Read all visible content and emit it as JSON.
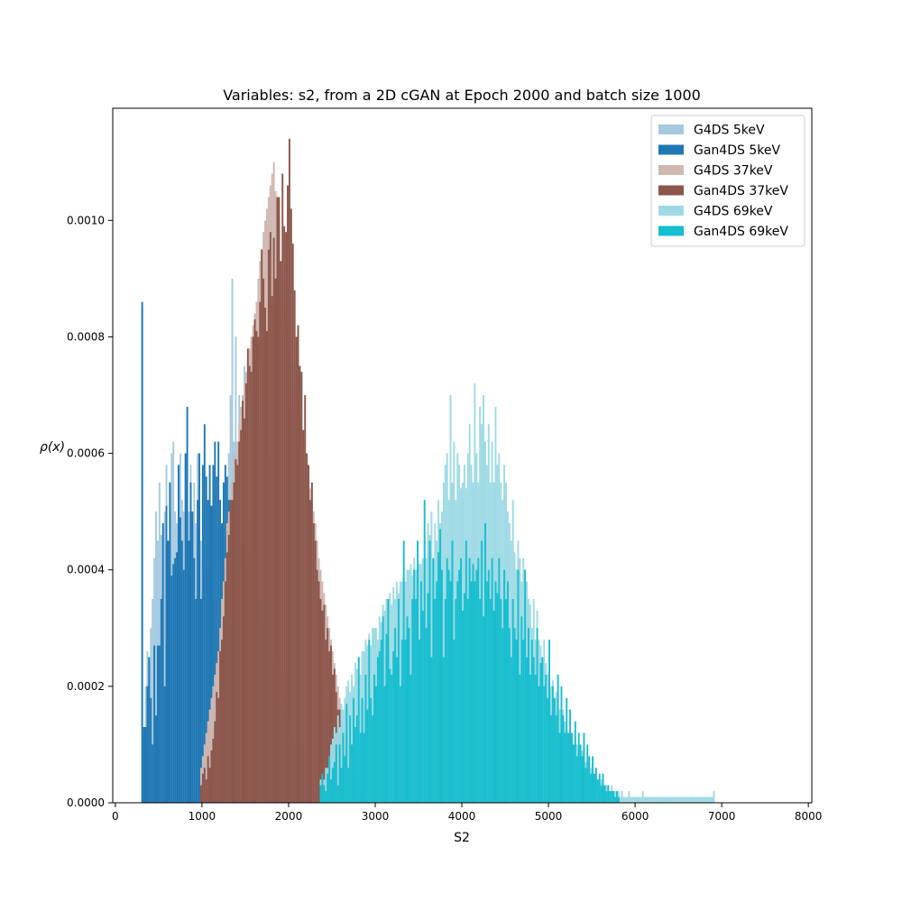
{
  "chart_data": {
    "type": "bar",
    "title": "Variables: s2, from a 2D cGAN at Epoch 2000 and batch size 1000",
    "xlabel": "S2",
    "ylabel": "ρ(x)",
    "xlim": [
      -30,
      8040
    ],
    "ylim": [
      0,
      0.0011925
    ],
    "x_ticks": [
      0,
      1000,
      2000,
      3000,
      4000,
      5000,
      6000,
      7000,
      8000
    ],
    "x_tick_labels": [
      "0",
      "1000",
      "2000",
      "3000",
      "4000",
      "5000",
      "6000",
      "7000",
      "8000"
    ],
    "y_ticks": [
      0,
      0.0002,
      0.0004,
      0.0006,
      0.0008,
      0.001
    ],
    "y_tick_labels": [
      "0.0000",
      "0.0002",
      "0.0004",
      "0.0006",
      "0.0008",
      "0.0010"
    ],
    "grid": false,
    "legend_position": "top-right",
    "series": [
      {
        "name": "G4DS 5keV",
        "color": "#a6cae0",
        "bin_start": 300,
        "bin_width": 20,
        "values": [
          0.00085,
          0.00012,
          0.0002,
          0.00026,
          0.00024,
          0.0003,
          0.00035,
          0.00042,
          0.0005,
          0.00045,
          0.00055,
          0.00046,
          0.0004,
          0.0005,
          0.00058,
          0.00045,
          0.0005,
          0.0006,
          0.00062,
          0.0005,
          0.00048,
          0.00056,
          0.0006,
          0.00052,
          0.0005,
          0.0006,
          0.00045,
          0.0005,
          0.00058,
          0.0005,
          0.00055,
          0.00048,
          0.0006,
          0.00055,
          0.00045,
          0.0005,
          0.00042,
          0.0004,
          0.00044,
          0.0004,
          0.00035,
          0.0003,
          0.00035,
          0.0003,
          0.00025,
          0.00022,
          0.0002,
          0.00015,
          0.0004,
          0.00045,
          0.0006,
          0.0007,
          0.0009,
          0.00062,
          0.0008,
          0.00058,
          0.0007,
          0.00065,
          0.0007,
          0.00075,
          0.00068,
          0.0007,
          0.00072,
          0.0008,
          0.0007,
          0.0006,
          0.00065,
          0.0006,
          0.0009,
          0.00085,
          0.00075,
          0.00065,
          0.0007,
          0.0006,
          0.00105,
          0.0008,
          0.0007,
          0.0006,
          0.0008,
          0.001,
          0.0008,
          0.0006,
          0.0009,
          0.00085,
          0.0007,
          0.0006,
          0.0008,
          0.00068,
          0.0007,
          0.00075,
          0.00055,
          0.0006,
          0.00065,
          0.00055,
          0.0005,
          0.00052,
          0.00048,
          0.00035,
          0.00045,
          0.0004,
          0.0003,
          0.0003,
          0.00022,
          0.00025,
          0.0002,
          0.00015,
          0.00018,
          0.0001,
          0.00012,
          8e-05
        ]
      },
      {
        "name": "Gan4DS 5keV",
        "color": "#1f77b4",
        "bin_start": 300,
        "bin_width": 20,
        "values": [
          0.00086,
          0.00013,
          0.00013,
          0.0002,
          0.00025,
          0.00018,
          0.0001,
          0.00027,
          0.00015,
          0.00027,
          0.00027,
          0.00035,
          0.00048,
          0.0002,
          0.00051,
          0.00045,
          0.00055,
          0.00039,
          0.00041,
          0.00042,
          0.00043,
          0.00058,
          0.00049,
          0.00045,
          0.0004,
          0.0006,
          0.00068,
          0.00045,
          0.00055,
          0.0005,
          0.00042,
          0.00035,
          0.00052,
          0.0006,
          0.00035,
          0.00058,
          0.00065,
          0.00056,
          0.00052,
          0.00058,
          0.00051,
          0.00058,
          0.00062,
          0.00056,
          0.00062,
          0.00052,
          0.00048,
          0.00055,
          0.00058,
          0.00056,
          0.00052,
          0.00045,
          0.0005,
          0.00055,
          0.00059,
          0.00048,
          0.00052,
          0.00045,
          0.0004,
          0.00045,
          0.0004,
          0.00048,
          0.00043,
          0.00038,
          0.00041,
          0.00035,
          0.00045,
          0.00039,
          0.00035,
          0.00032,
          0.00031,
          0.00038,
          0.0003,
          0.00035,
          0.00032,
          0.00028,
          0.00025,
          0.00022,
          0.00026,
          0.0002,
          0.00018,
          0.00022,
          0.00016,
          0.00015,
          0.00014,
          0.00012,
          0.00012,
          0.0001,
          0.00011,
          0.0001,
          9e-05,
          9e-05,
          0.0001,
          8e-05
        ]
      },
      {
        "name": "G4DS 37keV",
        "color": "#d0b8b0",
        "bin_start": 980,
        "bin_width": 20,
        "values": [
          6e-05,
          8e-05,
          0.0001,
          0.00012,
          0.00014,
          0.00016,
          0.00018,
          0.0002,
          0.00022,
          0.00024,
          0.00026,
          0.0003,
          0.00035,
          0.00038,
          0.00042,
          0.00048,
          0.0005,
          0.0005,
          0.00055,
          0.0006,
          0.00058,
          0.00062,
          0.00065,
          0.00068,
          0.0007,
          0.00072,
          0.00074,
          0.00076,
          0.00078,
          0.0008,
          0.00082,
          0.00084,
          0.00086,
          0.0009,
          0.00093,
          0.00095,
          0.00098,
          0.001,
          0.00102,
          0.00104,
          0.00106,
          0.00108,
          0.0011,
          0.00105,
          0.001,
          0.00095,
          0.0009,
          0.00088,
          0.00086,
          0.00084,
          0.00082,
          0.0008,
          0.00078,
          0.00075,
          0.00072,
          0.0007,
          0.00068,
          0.00066,
          0.00064,
          0.00062,
          0.0006,
          0.00058,
          0.00056,
          0.00054,
          0.00052,
          0.0005,
          0.00048,
          0.00045,
          0.00042,
          0.0004,
          0.00038,
          0.00036,
          0.00034,
          0.00032,
          0.0003,
          0.00028,
          0.00026,
          0.00024,
          0.00022,
          0.0002,
          0.00018,
          0.00016,
          0.00015,
          0.00014,
          0.00012,
          0.00012,
          0.0001,
          0.0001,
          9e-05,
          8e-05,
          8e-05,
          7e-05,
          6e-05,
          5e-05
        ]
      },
      {
        "name": "Gan4DS 37keV",
        "color": "#8c564b",
        "bin_start": 980,
        "bin_width": 20,
        "values": [
          3e-05,
          5e-05,
          6e-05,
          4e-05,
          8e-05,
          6e-05,
          9e-05,
          0.00011,
          0.00014,
          0.00019,
          0.00018,
          0.00026,
          0.00028,
          0.00032,
          0.00038,
          0.00043,
          0.00046,
          0.00052,
          0.00052,
          0.00055,
          0.00059,
          0.00058,
          0.00062,
          0.00064,
          0.00069,
          0.00066,
          0.00072,
          0.00078,
          0.00075,
          0.00074,
          0.0008,
          0.00083,
          0.00081,
          0.0008,
          0.00086,
          0.00095,
          0.0009,
          0.00085,
          0.00081,
          0.00095,
          0.00098,
          0.00087,
          0.00097,
          0.0009,
          0.00104,
          0.00104,
          0.00093,
          0.00108,
          0.00099,
          0.00098,
          0.00106,
          0.00114,
          0.00102,
          0.00096,
          0.00088,
          0.0008,
          0.00082,
          0.00075,
          0.00074,
          0.00064,
          0.0007,
          0.0006,
          0.00058,
          0.00052,
          0.00055,
          0.00048,
          0.00045,
          0.0004,
          0.00038,
          0.00035,
          0.00033,
          0.00034,
          0.00028,
          0.0003,
          0.00026,
          0.00027,
          0.00022,
          0.00023,
          0.00019,
          0.00016,
          0.00016,
          0.00014,
          0.00011,
          0.00012,
          0.0001,
          8e-05,
          6e-05,
          7e-05,
          4e-05,
          5e-05,
          3e-05,
          3e-05,
          2e-05,
          2e-05
        ]
      },
      {
        "name": "G4DS 69keV",
        "color": "#9edae5",
        "bin_start": 2360,
        "bin_width": 20,
        "values": [
          4e-05,
          3e-05,
          4e-05,
          6e-05,
          6e-05,
          8e-05,
          0.0001,
          0.00011,
          0.00013,
          0.00012,
          0.00015,
          0.00013,
          0.00017,
          0.00016,
          0.00018,
          0.0002,
          0.00021,
          0.00019,
          0.00022,
          0.0002,
          0.00024,
          0.00023,
          0.00025,
          0.00022,
          0.00026,
          0.00026,
          0.00028,
          0.00027,
          0.00029,
          0.00027,
          0.0003,
          0.0003,
          0.0003,
          0.00028,
          0.00032,
          0.00031,
          0.00034,
          0.00033,
          0.00035,
          0.00033,
          0.00036,
          0.00034,
          0.00037,
          0.00035,
          0.00038,
          0.00036,
          0.00038,
          0.00038,
          0.00039,
          0.00038,
          0.0004,
          0.0004,
          0.00041,
          0.00039,
          0.00042,
          0.0004,
          0.0004,
          0.00041,
          0.00041,
          0.00042,
          0.00045,
          0.00042,
          0.00048,
          0.00046,
          0.0005,
          0.00042,
          0.00048,
          0.00045,
          0.00052,
          0.00048,
          0.0005,
          0.00055,
          0.00058,
          0.0006,
          0.00052,
          0.0007,
          0.00055,
          0.00062,
          0.00052,
          0.0006,
          0.00058,
          0.00054,
          0.00055,
          0.00058,
          0.00054,
          0.0006,
          0.00065,
          0.00058,
          0.00055,
          0.00072,
          0.0006,
          0.00055,
          0.00068,
          0.00065,
          0.0007,
          0.00062,
          0.00058,
          0.00065,
          0.00055,
          0.00062,
          0.00055,
          0.00068,
          0.00058,
          0.0006,
          0.00055,
          0.00052,
          0.00058,
          0.00055,
          0.0005,
          0.00048,
          0.00045,
          0.00052,
          0.00043,
          0.0004,
          0.00045,
          0.00042,
          0.00038,
          0.00042,
          0.00035,
          0.00038,
          0.00035,
          0.00034,
          0.0003,
          0.00035,
          0.00028,
          0.00033,
          0.00028,
          0.00027,
          0.00025,
          0.00028,
          0.00024,
          0.00022,
          0.00023,
          0.0002,
          0.00021,
          0.00018,
          0.00019,
          0.00018,
          0.00016,
          0.00015,
          0.00016,
          0.00014,
          0.00013,
          0.00012,
          0.00013,
          0.00011,
          0.0001,
          0.00011,
          0.0001,
          9e-05,
          8e-05,
          9e-05,
          8e-05,
          7e-05,
          7e-05,
          6e-05,
          6e-05,
          5e-05,
          5e-05,
          5e-05,
          4e-05,
          4e-05,
          4e-05,
          3e-05,
          3e-05,
          3e-05,
          3e-05,
          2e-05,
          3e-05,
          2e-05,
          2e-05,
          2e-05,
          2e-05,
          1e-05,
          2e-05,
          1e-05,
          1e-05,
          1e-05,
          2e-05,
          1e-05,
          1e-05,
          1e-05,
          1e-05,
          1e-05,
          1e-05,
          1e-05,
          2e-05,
          1e-05,
          1e-05,
          1e-05,
          1e-05,
          1e-05,
          1e-05,
          1e-05,
          1e-05,
          1e-05,
          1e-05,
          1e-05,
          1e-05,
          1e-05,
          1e-05,
          1e-05,
          1e-05,
          1e-05,
          1e-05,
          1e-05,
          1e-05,
          1e-05,
          1e-05,
          1e-05,
          1e-05,
          1e-05,
          1e-05,
          1e-05,
          1e-05,
          1e-05,
          1e-05,
          1e-05,
          1e-05,
          1e-05,
          1e-05,
          1e-05,
          1e-05,
          1e-05,
          1e-05,
          1e-05,
          1e-05,
          2e-05
        ]
      },
      {
        "name": "Gan4DS 69keV",
        "color": "#17becf",
        "bin_start": 2360,
        "bin_width": 20,
        "values": [
          3e-05,
          5e-05,
          3e-05,
          2e-05,
          5e-05,
          8e-05,
          4e-05,
          6e-05,
          7e-05,
          0.0001,
          3e-05,
          0.0001,
          6e-05,
          0.00012,
          8e-05,
          0.00017,
          6e-05,
          0.00015,
          0.0001,
          0.00018,
          0.00013,
          0.00015,
          0.00025,
          0.00012,
          0.00018,
          0.00012,
          0.00022,
          0.00016,
          0.00028,
          0.00018,
          0.00015,
          0.00022,
          0.0002,
          0.00025,
          0.00026,
          0.00028,
          0.00032,
          0.0002,
          0.00029,
          0.00035,
          0.00023,
          0.00022,
          0.00026,
          0.0003,
          0.00025,
          0.00035,
          0.0002,
          0.00028,
          0.00045,
          0.00028,
          0.00032,
          0.0003,
          0.00022,
          0.00035,
          0.0004,
          0.00035,
          0.00045,
          0.00028,
          0.00038,
          0.00033,
          0.00052,
          0.0003,
          0.00036,
          0.00045,
          0.00025,
          0.00042,
          0.00035,
          0.00038,
          0.00043,
          0.00047,
          0.0004,
          0.00025,
          0.00035,
          0.00042,
          0.0004,
          0.00038,
          0.00045,
          0.00028,
          0.00035,
          0.00038,
          0.0004,
          0.00042,
          0.00033,
          0.00036,
          0.00045,
          0.00035,
          0.00042,
          0.00038,
          0.00041,
          0.00038,
          0.0004,
          0.00042,
          0.00035,
          0.00045,
          0.00032,
          0.00048,
          0.00038,
          0.0004,
          0.00035,
          0.00042,
          0.00033,
          0.00038,
          0.00036,
          0.00042,
          0.00035,
          0.0003,
          0.0004,
          0.00035,
          0.00038,
          0.0003,
          0.00025,
          0.00035,
          0.0003,
          0.00028,
          0.0004,
          0.00022,
          0.00032,
          0.00028,
          0.0004,
          0.00025,
          0.0003,
          0.00022,
          0.00028,
          0.00025,
          0.00022,
          0.0003,
          0.0002,
          0.00024,
          0.00025,
          0.0002,
          0.00022,
          0.00018,
          0.00028,
          0.00015,
          0.0002,
          0.00018,
          0.00015,
          0.00022,
          0.00012,
          0.0002,
          0.00015,
          0.00012,
          0.00018,
          0.00012,
          0.00016,
          0.00012,
          0.0001,
          0.00014,
          8e-05,
          0.00012,
          0.0001,
          8e-05,
          0.00012,
          6e-05,
          0.0001,
          8e-05,
          5e-05,
          8e-05,
          5e-05,
          6e-05,
          4e-05,
          5e-05,
          3e-05,
          5e-05,
          3e-05,
          2e-05,
          3e-05,
          2e-05,
          2e-05,
          2e-05,
          1e-05,
          2e-05,
          1e-05
        ]
      }
    ]
  }
}
